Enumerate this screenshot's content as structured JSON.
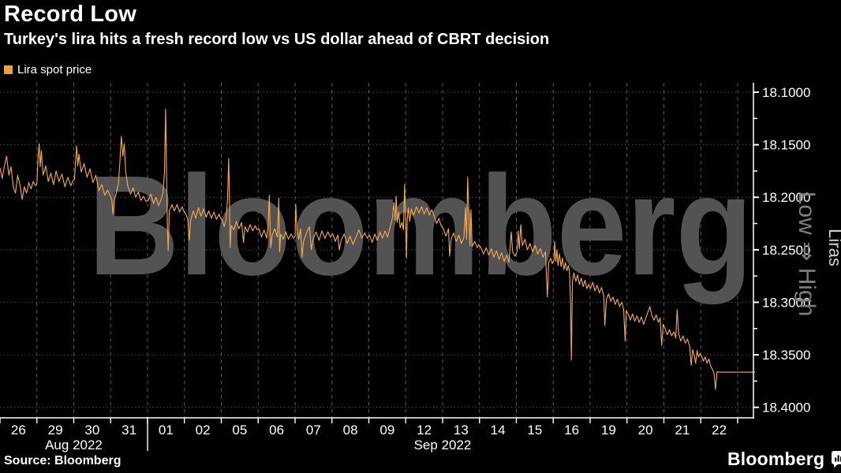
{
  "header": {
    "title": "Record Low",
    "subtitle": "Turkey's lira hits a fresh record low vs US dollar ahead of CBRT decision"
  },
  "legend": {
    "label": "Lira spot price",
    "swatch_color": "#f59f33"
  },
  "source": {
    "text": "Source: Bloomberg"
  },
  "brand": {
    "logo_text": "Bloomberg"
  },
  "watermark": {
    "text": "Bloomberg",
    "color": "#535353"
  },
  "colors": {
    "background": "#000000",
    "line": "#f8ab4b",
    "axis": "#ffffff",
    "grid_horizontal": "#4a4a4a",
    "grid_vertical": "#5a5a5a",
    "text": "#ffffff",
    "annotation_gray": "#7e7e7e",
    "unit_gray": "#d0d0d0"
  },
  "chart_data": {
    "type": "line",
    "title": "Record Low",
    "series_name": "Lira spot price",
    "x_unit": "trading days 26 Aug 2022 - 22 Sep 2022 (fractional position within each day)",
    "y_unit": "Liras per US dollar",
    "y_axis_inverted": true,
    "y_range": [
      18.091,
      18.41
    ],
    "y_ticks": [
      {
        "label": "18.1000",
        "value": 18.1
      },
      {
        "label": "18.1500",
        "value": 18.15
      },
      {
        "label": "18.2000",
        "value": 18.2
      },
      {
        "label": "18.2500",
        "value": 18.25
      },
      {
        "label": "18.3000",
        "value": 18.3
      },
      {
        "label": "18.3500",
        "value": 18.35
      },
      {
        "label": "18.4000",
        "value": 18.4
      }
    ],
    "y_minor_step": 0.025,
    "y_axis_annotation": "Low ⇒ High",
    "y_axis_unit_label": "Liras",
    "x_tick_labels": [
      "26",
      "29",
      "30",
      "31",
      "01",
      "02",
      "05",
      "06",
      "07",
      "08",
      "09",
      "12",
      "13",
      "14",
      "15",
      "16",
      "19",
      "20",
      "21",
      "22"
    ],
    "months": [
      {
        "label": "Aug 2022",
        "start_slot": 0,
        "end_slot": 4
      },
      {
        "label": "Sep 2022",
        "start_slot": 4,
        "end_slot": 20
      }
    ],
    "last_price": 18.3665,
    "points": [
      [
        0.0,
        18.172
      ],
      [
        0.06,
        18.182
      ],
      [
        0.12,
        18.17
      ],
      [
        0.18,
        18.161
      ],
      [
        0.24,
        18.179
      ],
      [
        0.3,
        18.171
      ],
      [
        0.36,
        18.19
      ],
      [
        0.42,
        18.196
      ],
      [
        0.48,
        18.179
      ],
      [
        0.54,
        18.188
      ],
      [
        0.6,
        18.202
      ],
      [
        0.66,
        18.19
      ],
      [
        0.72,
        18.196
      ],
      [
        0.78,
        18.186
      ],
      [
        0.84,
        18.192
      ],
      [
        0.9,
        18.185
      ],
      [
        0.96,
        18.189
      ],
      [
        1.0,
        18.187
      ],
      [
        1.03,
        18.163
      ],
      [
        1.06,
        18.149
      ],
      [
        1.09,
        18.171
      ],
      [
        1.12,
        18.156
      ],
      [
        1.17,
        18.179
      ],
      [
        1.24,
        18.17
      ],
      [
        1.31,
        18.185
      ],
      [
        1.38,
        18.177
      ],
      [
        1.45,
        18.188
      ],
      [
        1.52,
        18.175
      ],
      [
        1.6,
        18.185
      ],
      [
        1.68,
        18.178
      ],
      [
        1.76,
        18.19
      ],
      [
        1.84,
        18.181
      ],
      [
        1.92,
        18.189
      ],
      [
        1.98,
        18.184
      ],
      [
        2.02,
        18.183
      ],
      [
        2.05,
        18.166
      ],
      [
        2.08,
        18.151
      ],
      [
        2.11,
        18.17
      ],
      [
        2.14,
        18.159
      ],
      [
        2.2,
        18.176
      ],
      [
        2.28,
        18.168
      ],
      [
        2.36,
        18.181
      ],
      [
        2.44,
        18.173
      ],
      [
        2.52,
        18.186
      ],
      [
        2.6,
        18.179
      ],
      [
        2.68,
        18.194
      ],
      [
        2.76,
        18.188
      ],
      [
        2.84,
        18.198
      ],
      [
        2.92,
        18.193
      ],
      [
        2.98,
        18.198
      ],
      [
        3.03,
        18.202
      ],
      [
        3.06,
        18.216
      ],
      [
        3.1,
        18.203
      ],
      [
        3.16,
        18.195
      ],
      [
        3.21,
        18.187
      ],
      [
        3.25,
        18.167
      ],
      [
        3.29,
        18.142
      ],
      [
        3.33,
        18.161
      ],
      [
        3.37,
        18.149
      ],
      [
        3.41,
        18.176
      ],
      [
        3.47,
        18.19
      ],
      [
        3.54,
        18.197
      ],
      [
        3.61,
        18.191
      ],
      [
        3.68,
        18.2
      ],
      [
        3.75,
        18.195
      ],
      [
        3.82,
        18.203
      ],
      [
        3.89,
        18.199
      ],
      [
        3.96,
        18.204
      ],
      [
        4.02,
        18.203
      ],
      [
        4.09,
        18.197
      ],
      [
        4.16,
        18.206
      ],
      [
        4.23,
        18.2
      ],
      [
        4.3,
        18.208
      ],
      [
        4.37,
        18.202
      ],
      [
        4.42,
        18.196
      ],
      [
        4.46,
        18.176
      ],
      [
        4.49,
        18.116
      ],
      [
        4.52,
        18.186
      ],
      [
        4.54,
        18.23
      ],
      [
        4.56,
        18.251
      ],
      [
        4.59,
        18.213
      ],
      [
        4.66,
        18.207
      ],
      [
        4.73,
        18.213
      ],
      [
        4.8,
        18.207
      ],
      [
        4.87,
        18.214
      ],
      [
        4.94,
        18.209
      ],
      [
        4.98,
        18.213
      ],
      [
        5.04,
        18.216
      ],
      [
        5.09,
        18.221
      ],
      [
        5.13,
        18.241
      ],
      [
        5.17,
        18.222
      ],
      [
        5.24,
        18.213
      ],
      [
        5.31,
        18.22
      ],
      [
        5.38,
        18.21
      ],
      [
        5.45,
        18.218
      ],
      [
        5.52,
        18.211
      ],
      [
        5.59,
        18.219
      ],
      [
        5.66,
        18.213
      ],
      [
        5.73,
        18.22
      ],
      [
        5.8,
        18.214
      ],
      [
        5.87,
        18.221
      ],
      [
        5.94,
        18.216
      ],
      [
        5.98,
        18.22
      ],
      [
        6.03,
        18.222
      ],
      [
        6.08,
        18.228
      ],
      [
        6.13,
        18.221
      ],
      [
        6.17,
        18.201
      ],
      [
        6.2,
        18.163
      ],
      [
        6.22,
        18.2
      ],
      [
        6.24,
        18.248
      ],
      [
        6.27,
        18.227
      ],
      [
        6.34,
        18.231
      ],
      [
        6.41,
        18.223
      ],
      [
        6.48,
        18.23
      ],
      [
        6.55,
        18.224
      ],
      [
        6.6,
        18.243
      ],
      [
        6.64,
        18.228
      ],
      [
        6.71,
        18.233
      ],
      [
        6.78,
        18.226
      ],
      [
        6.85,
        18.232
      ],
      [
        6.92,
        18.227
      ],
      [
        6.97,
        18.231
      ],
      [
        7.02,
        18.23
      ],
      [
        7.09,
        18.238
      ],
      [
        7.16,
        18.231
      ],
      [
        7.23,
        18.239
      ],
      [
        7.27,
        18.226
      ],
      [
        7.3,
        18.198
      ],
      [
        7.32,
        18.224
      ],
      [
        7.34,
        18.248
      ],
      [
        7.38,
        18.236
      ],
      [
        7.45,
        18.23
      ],
      [
        7.52,
        18.238
      ],
      [
        7.56,
        18.201
      ],
      [
        7.58,
        18.252
      ],
      [
        7.61,
        18.235
      ],
      [
        7.68,
        18.24
      ],
      [
        7.75,
        18.233
      ],
      [
        7.82,
        18.24
      ],
      [
        7.89,
        18.235
      ],
      [
        7.96,
        18.239
      ],
      [
        8.0,
        18.237
      ],
      [
        8.02,
        18.207
      ],
      [
        8.05,
        18.229
      ],
      [
        8.1,
        18.24
      ],
      [
        8.15,
        18.23
      ],
      [
        8.19,
        18.257
      ],
      [
        8.23,
        18.242
      ],
      [
        8.31,
        18.234
      ],
      [
        8.39,
        18.228
      ],
      [
        8.44,
        18.25
      ],
      [
        8.49,
        18.24
      ],
      [
        8.57,
        18.233
      ],
      [
        8.65,
        18.241
      ],
      [
        8.73,
        18.232
      ],
      [
        8.81,
        18.239
      ],
      [
        8.89,
        18.233
      ],
      [
        8.96,
        18.238
      ],
      [
        9.02,
        18.235
      ],
      [
        9.09,
        18.242
      ],
      [
        9.16,
        18.236
      ],
      [
        9.2,
        18.25
      ],
      [
        9.25,
        18.241
      ],
      [
        9.33,
        18.235
      ],
      [
        9.41,
        18.244
      ],
      [
        9.49,
        18.237
      ],
      [
        9.57,
        18.245
      ],
      [
        9.65,
        18.238
      ],
      [
        9.73,
        18.231
      ],
      [
        9.81,
        18.239
      ],
      [
        9.89,
        18.234
      ],
      [
        9.96,
        18.239
      ],
      [
        10.02,
        18.236
      ],
      [
        10.09,
        18.243
      ],
      [
        10.16,
        18.235
      ],
      [
        10.23,
        18.241
      ],
      [
        10.3,
        18.233
      ],
      [
        10.37,
        18.239
      ],
      [
        10.44,
        18.232
      ],
      [
        10.51,
        18.238
      ],
      [
        10.58,
        18.228
      ],
      [
        10.64,
        18.22
      ],
      [
        10.68,
        18.205
      ],
      [
        10.71,
        18.222
      ],
      [
        10.74,
        18.199
      ],
      [
        10.77,
        18.224
      ],
      [
        10.81,
        18.214
      ],
      [
        10.85,
        18.229
      ],
      [
        10.9,
        18.224
      ],
      [
        10.94,
        18.231
      ],
      [
        10.97,
        18.188
      ],
      [
        11.0,
        18.227
      ],
      [
        11.02,
        18.258
      ],
      [
        11.04,
        18.222
      ],
      [
        11.07,
        18.21
      ],
      [
        11.11,
        18.223
      ],
      [
        11.15,
        18.211
      ],
      [
        11.22,
        18.217
      ],
      [
        11.29,
        18.209
      ],
      [
        11.36,
        18.215
      ],
      [
        11.43,
        18.209
      ],
      [
        11.5,
        18.216
      ],
      [
        11.57,
        18.21
      ],
      [
        11.64,
        18.217
      ],
      [
        11.71,
        18.212
      ],
      [
        11.78,
        18.219
      ],
      [
        11.84,
        18.225
      ],
      [
        11.9,
        18.22
      ],
      [
        11.96,
        18.227
      ],
      [
        12.02,
        18.23
      ],
      [
        12.09,
        18.237
      ],
      [
        12.16,
        18.23
      ],
      [
        12.19,
        18.256
      ],
      [
        12.23,
        18.24
      ],
      [
        12.3,
        18.234
      ],
      [
        12.37,
        18.242
      ],
      [
        12.44,
        18.236
      ],
      [
        12.51,
        18.244
      ],
      [
        12.58,
        18.238
      ],
      [
        12.62,
        18.21
      ],
      [
        12.65,
        18.24
      ],
      [
        12.68,
        18.181
      ],
      [
        12.71,
        18.215
      ],
      [
        12.74,
        18.246
      ],
      [
        12.77,
        18.212
      ],
      [
        12.8,
        18.247
      ],
      [
        12.87,
        18.242
      ],
      [
        12.94,
        18.248
      ],
      [
        12.98,
        18.245
      ],
      [
        13.04,
        18.248
      ],
      [
        13.11,
        18.254
      ],
      [
        13.18,
        18.248
      ],
      [
        13.25,
        18.255
      ],
      [
        13.32,
        18.249
      ],
      [
        13.39,
        18.257
      ],
      [
        13.46,
        18.251
      ],
      [
        13.53,
        18.259
      ],
      [
        13.6,
        18.253
      ],
      [
        13.67,
        18.261
      ],
      [
        13.74,
        18.255
      ],
      [
        13.8,
        18.262
      ],
      [
        13.86,
        18.233
      ],
      [
        13.9,
        18.252
      ],
      [
        13.96,
        18.256
      ],
      [
        14.02,
        18.252
      ],
      [
        14.05,
        18.232
      ],
      [
        14.08,
        18.249
      ],
      [
        14.12,
        18.226
      ],
      [
        14.16,
        18.246
      ],
      [
        14.23,
        18.24
      ],
      [
        14.3,
        18.25
      ],
      [
        14.37,
        18.244
      ],
      [
        14.44,
        18.252
      ],
      [
        14.51,
        18.246
      ],
      [
        14.58,
        18.254
      ],
      [
        14.65,
        18.249
      ],
      [
        14.72,
        18.257
      ],
      [
        14.79,
        18.252
      ],
      [
        14.84,
        18.295
      ],
      [
        14.88,
        18.262
      ],
      [
        14.93,
        18.258
      ],
      [
        14.97,
        18.263
      ],
      [
        15.02,
        18.26
      ],
      [
        15.04,
        18.242
      ],
      [
        15.07,
        18.261
      ],
      [
        15.1,
        18.25
      ],
      [
        15.13,
        18.265
      ],
      [
        15.17,
        18.254
      ],
      [
        15.21,
        18.266
      ],
      [
        15.25,
        18.258
      ],
      [
        15.29,
        18.269
      ],
      [
        15.33,
        18.262
      ],
      [
        15.37,
        18.27
      ],
      [
        15.41,
        18.265
      ],
      [
        15.44,
        18.271
      ],
      [
        15.47,
        18.3
      ],
      [
        15.49,
        18.355
      ],
      [
        15.52,
        18.28
      ],
      [
        15.56,
        18.272
      ],
      [
        15.61,
        18.28
      ],
      [
        15.66,
        18.274
      ],
      [
        15.71,
        18.283
      ],
      [
        15.76,
        18.277
      ],
      [
        15.81,
        18.285
      ],
      [
        15.86,
        18.279
      ],
      [
        15.91,
        18.287
      ],
      [
        15.96,
        18.283
      ],
      [
        16.01,
        18.287
      ],
      [
        16.07,
        18.281
      ],
      [
        16.13,
        18.289
      ],
      [
        16.19,
        18.284
      ],
      [
        16.25,
        18.291
      ],
      [
        16.31,
        18.286
      ],
      [
        16.37,
        18.294
      ],
      [
        16.4,
        18.322
      ],
      [
        16.44,
        18.297
      ],
      [
        16.5,
        18.292
      ],
      [
        16.56,
        18.299
      ],
      [
        16.62,
        18.295
      ],
      [
        16.68,
        18.302
      ],
      [
        16.74,
        18.297
      ],
      [
        16.8,
        18.304
      ],
      [
        16.86,
        18.3
      ],
      [
        16.91,
        18.307
      ],
      [
        16.95,
        18.337
      ],
      [
        16.98,
        18.308
      ],
      [
        17.03,
        18.311
      ],
      [
        17.09,
        18.317
      ],
      [
        17.15,
        18.311
      ],
      [
        17.21,
        18.318
      ],
      [
        17.27,
        18.313
      ],
      [
        17.33,
        18.319
      ],
      [
        17.39,
        18.314
      ],
      [
        17.45,
        18.321
      ],
      [
        17.51,
        18.315
      ],
      [
        17.57,
        18.309
      ],
      [
        17.62,
        18.304
      ],
      [
        17.67,
        18.312
      ],
      [
        17.73,
        18.317
      ],
      [
        17.79,
        18.312
      ],
      [
        17.85,
        18.319
      ],
      [
        17.9,
        18.315
      ],
      [
        17.94,
        18.341
      ],
      [
        17.98,
        18.321
      ],
      [
        18.03,
        18.325
      ],
      [
        18.09,
        18.331
      ],
      [
        18.15,
        18.326
      ],
      [
        18.21,
        18.332
      ],
      [
        18.27,
        18.328
      ],
      [
        18.32,
        18.334
      ],
      [
        18.36,
        18.307
      ],
      [
        18.4,
        18.33
      ],
      [
        18.46,
        18.337
      ],
      [
        18.52,
        18.332
      ],
      [
        18.58,
        18.339
      ],
      [
        18.64,
        18.335
      ],
      [
        18.7,
        18.342
      ],
      [
        18.74,
        18.36
      ],
      [
        18.78,
        18.345
      ],
      [
        18.82,
        18.35
      ],
      [
        18.86,
        18.358
      ],
      [
        18.9,
        18.346
      ],
      [
        18.94,
        18.352
      ],
      [
        18.98,
        18.349
      ],
      [
        19.02,
        18.351
      ],
      [
        19.07,
        18.356
      ],
      [
        19.12,
        18.352
      ],
      [
        19.17,
        18.358
      ],
      [
        19.22,
        18.354
      ],
      [
        19.27,
        18.361
      ],
      [
        19.32,
        18.364
      ],
      [
        19.36,
        18.368
      ],
      [
        19.4,
        18.383
      ],
      [
        19.44,
        18.366
      ],
      [
        19.47,
        18.3665
      ]
    ]
  }
}
